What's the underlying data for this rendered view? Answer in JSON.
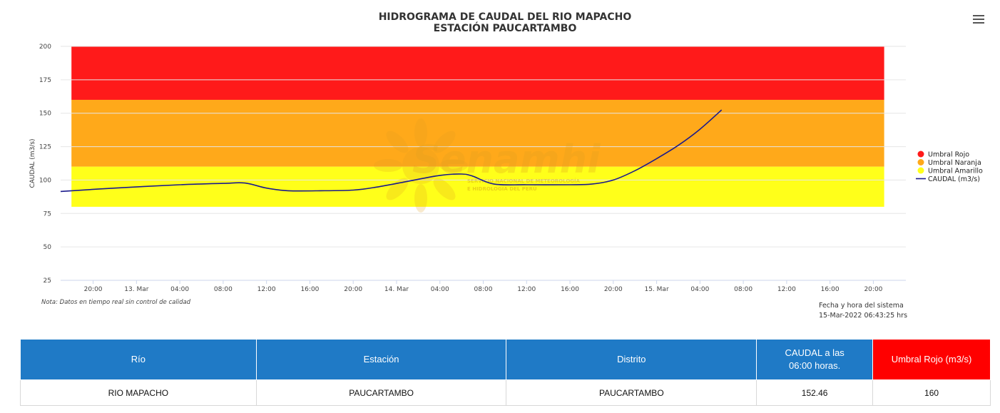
{
  "header": {
    "title_line1": "HIDROGRAMA DE CAUDAL DEL RIO MAPACHO",
    "title_line2": "ESTACIÓN PAUCARTAMBO",
    "menu_icon": "hamburger-menu-icon"
  },
  "watermark": {
    "brand": "Senamhi",
    "line1": "SERVICIO NACIONAL DE METEOROLOGÍA",
    "line2": "E HIDROLOGÍA DEL PERÚ"
  },
  "chart_data": {
    "type": "line",
    "ylabel": "CAUDAL (m3/s)",
    "xlabel": "",
    "ylim": [
      25,
      200
    ],
    "yticks": [
      25,
      50,
      75,
      100,
      125,
      150,
      175,
      200
    ],
    "grid": true,
    "legend_placement": "right",
    "x_start": "2022-03-12 17:00",
    "x_end": "2022-03-15 23:00",
    "xticks": [
      {
        "t": "2022-03-12 20:00",
        "label": "20:00"
      },
      {
        "t": "2022-03-13 00:00",
        "label": "13. Mar"
      },
      {
        "t": "2022-03-13 04:00",
        "label": "04:00"
      },
      {
        "t": "2022-03-13 08:00",
        "label": "08:00"
      },
      {
        "t": "2022-03-13 12:00",
        "label": "12:00"
      },
      {
        "t": "2022-03-13 16:00",
        "label": "16:00"
      },
      {
        "t": "2022-03-13 20:00",
        "label": "20:00"
      },
      {
        "t": "2022-03-14 00:00",
        "label": "14. Mar"
      },
      {
        "t": "2022-03-14 04:00",
        "label": "04:00"
      },
      {
        "t": "2022-03-14 08:00",
        "label": "08:00"
      },
      {
        "t": "2022-03-14 12:00",
        "label": "12:00"
      },
      {
        "t": "2022-03-14 16:00",
        "label": "16:00"
      },
      {
        "t": "2022-03-14 20:00",
        "label": "20:00"
      },
      {
        "t": "2022-03-15 00:00",
        "label": "15. Mar"
      },
      {
        "t": "2022-03-15 04:00",
        "label": "04:00"
      },
      {
        "t": "2022-03-15 08:00",
        "label": "08:00"
      },
      {
        "t": "2022-03-15 12:00",
        "label": "12:00"
      },
      {
        "t": "2022-03-15 16:00",
        "label": "16:00"
      },
      {
        "t": "2022-03-15 20:00",
        "label": "20:00"
      }
    ],
    "bands": [
      {
        "name": "Umbral Rojo",
        "from": 160,
        "to": 200,
        "color": "#ff1a1a"
      },
      {
        "name": "Umbral Naranja",
        "from": 110,
        "to": 160,
        "color": "#ffa91a"
      },
      {
        "name": "Umbral Amarillo",
        "from": 80,
        "to": 110,
        "color": "#ffff1a"
      }
    ],
    "bands_x_start": "2022-03-12 18:00",
    "bands_x_end": "2022-03-15 21:00",
    "series": [
      {
        "name": "CAUDAL (m3/s)",
        "color": "#1a1a8c",
        "points": [
          {
            "t": "2022-03-12 17:00",
            "y": 91.5
          },
          {
            "t": "2022-03-12 22:00",
            "y": 94.0
          },
          {
            "t": "2022-03-13 04:00",
            "y": 96.5
          },
          {
            "t": "2022-03-13 08:00",
            "y": 97.5
          },
          {
            "t": "2022-03-13 10:00",
            "y": 97.8
          },
          {
            "t": "2022-03-13 12:00",
            "y": 94.0
          },
          {
            "t": "2022-03-13 14:00",
            "y": 92.0
          },
          {
            "t": "2022-03-13 17:00",
            "y": 92.0
          },
          {
            "t": "2022-03-13 20:00",
            "y": 92.5
          },
          {
            "t": "2022-03-13 22:00",
            "y": 94.5
          },
          {
            "t": "2022-03-14 01:00",
            "y": 99.0
          },
          {
            "t": "2022-03-14 04:00",
            "y": 103.5
          },
          {
            "t": "2022-03-14 06:00",
            "y": 104.5
          },
          {
            "t": "2022-03-14 07:00",
            "y": 103.0
          },
          {
            "t": "2022-03-14 09:00",
            "y": 97.0
          },
          {
            "t": "2022-03-14 12:00",
            "y": 96.5
          },
          {
            "t": "2022-03-14 16:00",
            "y": 96.5
          },
          {
            "t": "2022-03-14 18:00",
            "y": 97.0
          },
          {
            "t": "2022-03-14 20:00",
            "y": 100.0
          },
          {
            "t": "2022-03-14 22:00",
            "y": 107.0
          },
          {
            "t": "2022-03-15 00:00",
            "y": 116.0
          },
          {
            "t": "2022-03-15 02:00",
            "y": 126.0
          },
          {
            "t": "2022-03-15 04:00",
            "y": 138.0
          },
          {
            "t": "2022-03-15 06:00",
            "y": 152.46
          }
        ]
      }
    ],
    "legend": [
      {
        "label": "Umbral Rojo",
        "color": "#ff1a1a",
        "symbol": "circle"
      },
      {
        "label": "Umbral Naranja",
        "color": "#ffa91a",
        "symbol": "circle"
      },
      {
        "label": "Umbral Amarillo",
        "color": "#ffff1a",
        "symbol": "circle"
      },
      {
        "label": "CAUDAL (m3/s)",
        "color": "#1a1a8c",
        "symbol": "line"
      }
    ]
  },
  "footer": {
    "note": "Nota: Datos en tiempo real sin control de calidad",
    "system_label": "Fecha y hora del sistema",
    "system_datetime": "15-Mar-2022 06:43:25 hrs"
  },
  "table": {
    "headers": {
      "rio": "Río",
      "estacion": "Estación",
      "distrito": "Distrito",
      "caudal_line1": "CAUDAL a las",
      "caudal_line2": "06:00 horas.",
      "umbral": "Umbral Rojo (m3/s)"
    },
    "row": {
      "rio": "RIO MAPACHO",
      "estacion": "PAUCARTAMBO",
      "distrito": "PAUCARTAMBO",
      "caudal": "152.46",
      "umbral": "160"
    },
    "colors": {
      "header_blue": "#1f7ac6",
      "header_red": "#ff0000"
    }
  }
}
